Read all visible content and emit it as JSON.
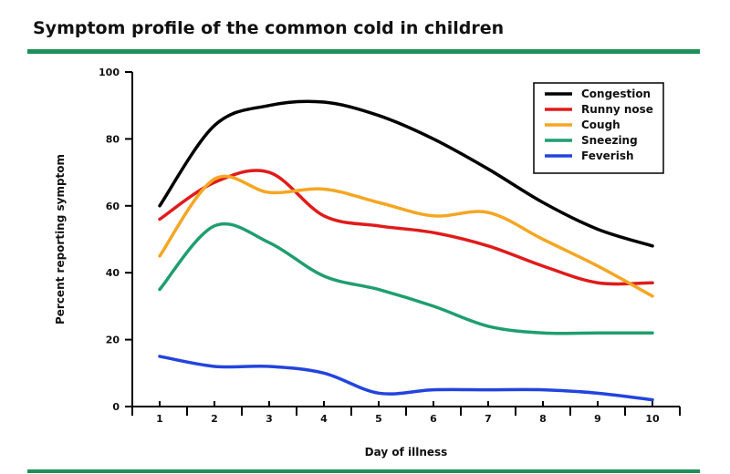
{
  "title": "Symptom profile of the common cold in children",
  "chart_data": {
    "type": "line",
    "title": "Symptom profile of the common cold in children",
    "xlabel": "Day of illness",
    "ylabel": "Percent reporting symptom",
    "x": [
      1,
      2,
      3,
      4,
      5,
      6,
      7,
      8,
      9,
      10
    ],
    "xlim": [
      0.5,
      10.5
    ],
    "ylim": [
      0,
      100
    ],
    "y_ticks": [
      0,
      20,
      40,
      60,
      80,
      100
    ],
    "grid": false,
    "legend_position": "top-right",
    "series": [
      {
        "name": "Congestion",
        "color": "#000000",
        "values": [
          60,
          84,
          90,
          91,
          87,
          80,
          71,
          61,
          53,
          48
        ]
      },
      {
        "name": "Runny nose",
        "color": "#e01b1b",
        "values": [
          56,
          67,
          70,
          57,
          54,
          52,
          48,
          42,
          37,
          37
        ]
      },
      {
        "name": "Cough",
        "color": "#f5a623",
        "values": [
          45,
          68,
          64,
          65,
          61,
          57,
          58,
          50,
          42,
          33
        ]
      },
      {
        "name": "Sneezing",
        "color": "#1f9e6e",
        "values": [
          35,
          54,
          49,
          39,
          35,
          30,
          24,
          22,
          22,
          22
        ]
      },
      {
        "name": "Feverish",
        "color": "#2244dd",
        "values": [
          15,
          12,
          12,
          10,
          4,
          5,
          5,
          5,
          4,
          2
        ]
      }
    ]
  }
}
